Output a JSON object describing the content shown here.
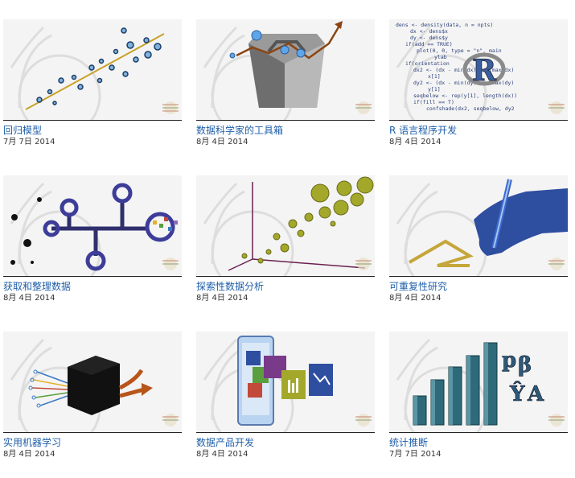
{
  "courses": [
    {
      "title": "回归模型",
      "date": "7月 7日 2014",
      "icon": "regression-scatter-illustration"
    },
    {
      "title": "数据科学家的工具箱",
      "date": "8月 4日 2014",
      "icon": "toolbox-illustration"
    },
    {
      "title": "R 语言程序开发",
      "date": "8月 4日 2014",
      "icon": "r-code-illustration"
    },
    {
      "title": "获取和整理数据",
      "date": "8月 4日 2014",
      "icon": "data-pipeline-illustration"
    },
    {
      "title": "探索性数据分析",
      "date": "8月 4日 2014",
      "icon": "3d-bubble-plot-illustration"
    },
    {
      "title": "可重复性研究",
      "date": "8月 4日 2014",
      "icon": "hand-writing-illustration"
    },
    {
      "title": "实用机器学习",
      "date": "8月 4日 2014",
      "icon": "black-box-illustration"
    },
    {
      "title": "数据产品开发",
      "date": "8月 4日 2014",
      "icon": "mobile-apps-illustration"
    },
    {
      "title": "统计推断",
      "date": "7月 7日 2014",
      "icon": "bar-chart-illustration"
    }
  ],
  "code_lines": [
    "dens <- density(data, n = npts)",
    "dx <- dens$x",
    "dy <- dens$y",
    "if(add == TRUE)",
    "plot(0, 0, type = \"n\", main",
    "ylab",
    "if(orientation",
    "dx2 <- (dx - min(dx)) / (max(dx)",
    "x[1]",
    "dy2 <- (dx - min(dy)) / (max(dy)",
    "y[1]",
    "seqbelow <- rep(y[1], length(dx))",
    "if(fill == T)",
    "confshade(dx2, seqbelow, dy2"
  ],
  "r_logo_letter": "R"
}
